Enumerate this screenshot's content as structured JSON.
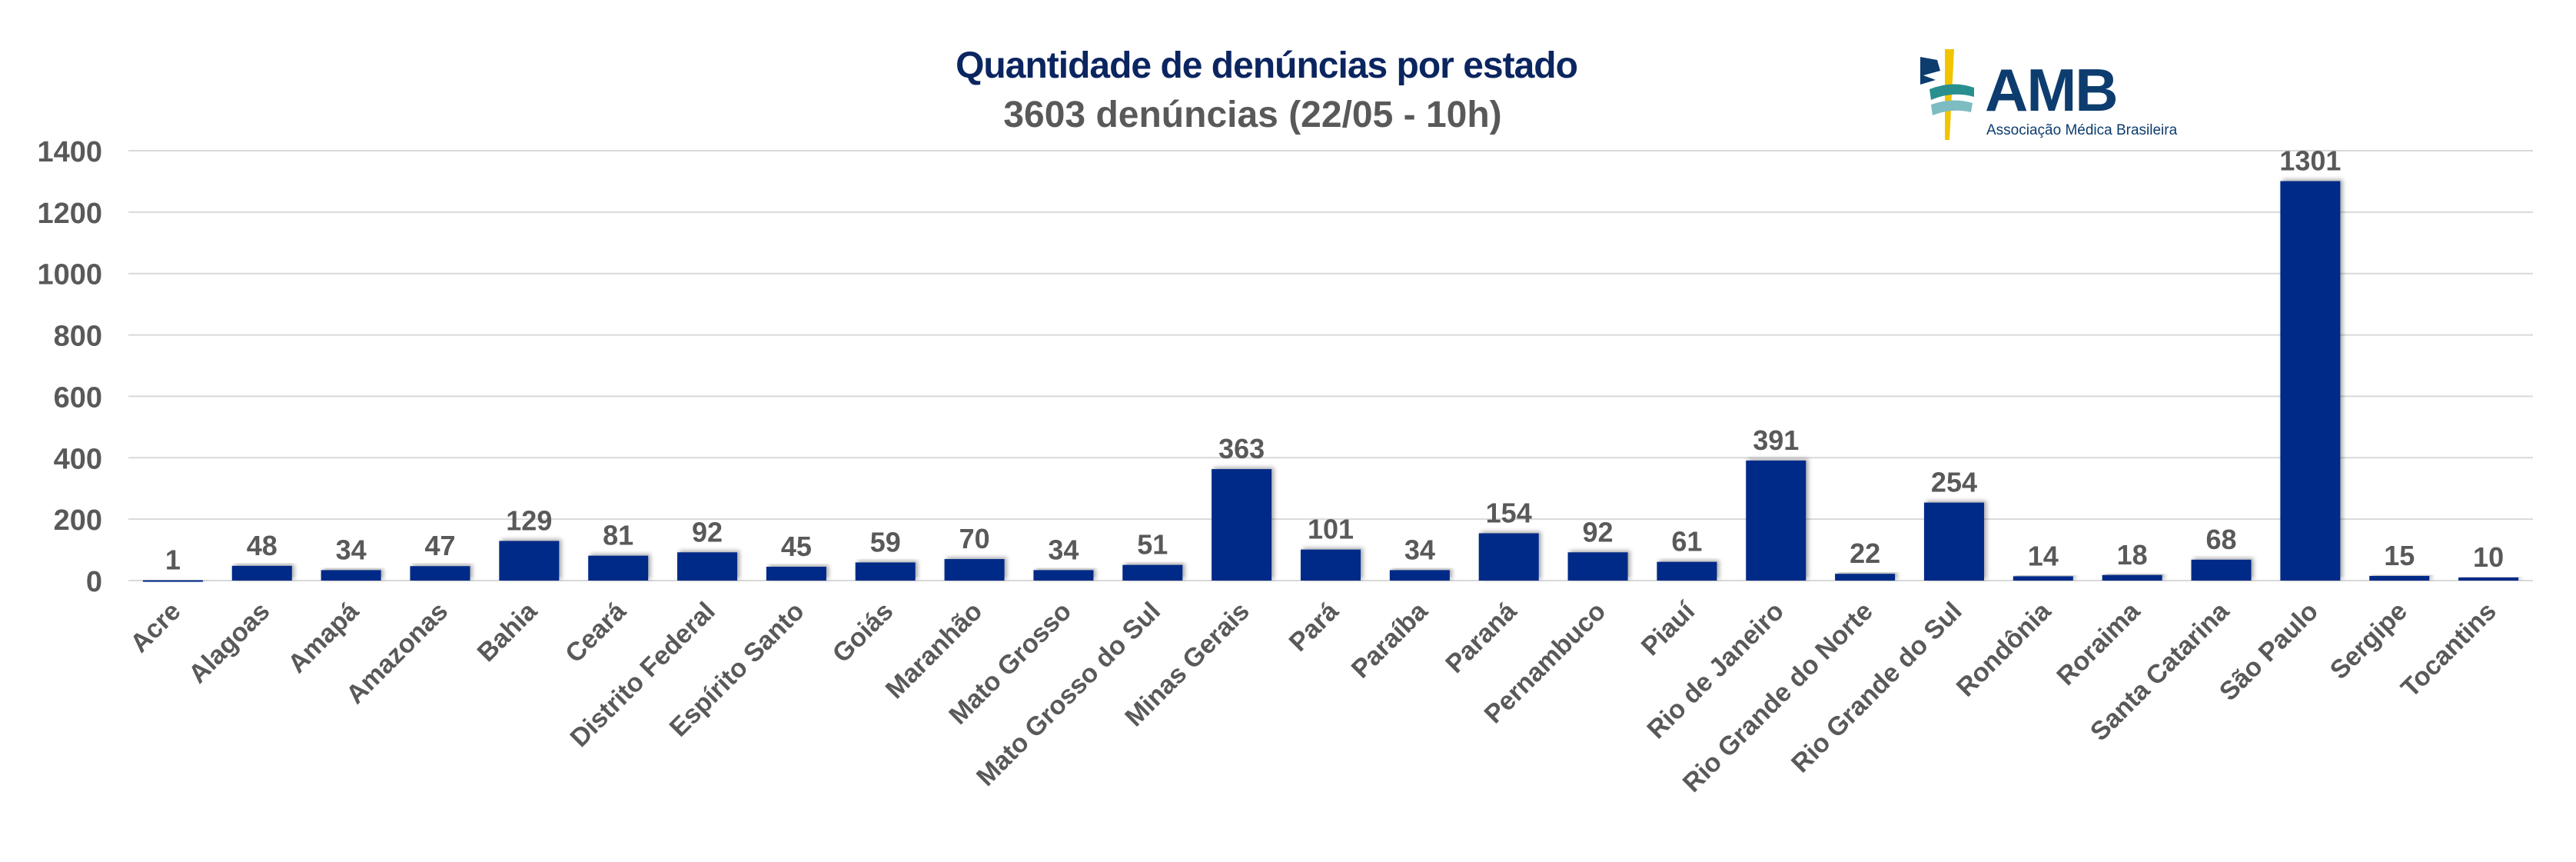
{
  "title": "Quantidade de denúncias por estado",
  "subtitle": "3603 denúncias (22/05 - 10h)",
  "logo": {
    "text": "AMB",
    "subtext": "Associação Médica Brasileira"
  },
  "colors": {
    "bar": "#002b87",
    "title": "#0b2560",
    "text": "#595959",
    "grid": "#d9d9d9"
  },
  "chart_data": {
    "type": "bar",
    "title": "Quantidade de denúncias por estado",
    "subtitle": "3603 denúncias (22/05 - 10h)",
    "xlabel": "",
    "ylabel": "",
    "ylim": [
      0,
      1400
    ],
    "yticks": [
      "0",
      "200",
      "400",
      "600",
      "800",
      "1000",
      "1200",
      "1400"
    ],
    "grid": true,
    "categories": [
      "Acre",
      "Alagoas",
      "Amapá",
      "Amazonas",
      "Bahia",
      "Ceará",
      "Distrito Federal",
      "Espírito Santo",
      "Goiás",
      "Maranhão",
      "Mato Grosso",
      "Mato Grosso do Sul",
      "Minas Gerais",
      "Pará",
      "Paraíba",
      "Paraná",
      "Pernambuco",
      "Piauí",
      "Rio de Janeiro",
      "Rio Grande do Norte",
      "Rio Grande do Sul",
      "Rondônia",
      "Roraima",
      "Santa Catarina",
      "São Paulo",
      "Sergipe",
      "Tocantins"
    ],
    "values": [
      1,
      48,
      34,
      47,
      129,
      81,
      92,
      45,
      59,
      70,
      34,
      51,
      363,
      101,
      34,
      154,
      92,
      61,
      391,
      22,
      254,
      14,
      18,
      68,
      1301,
      15,
      10
    ]
  }
}
